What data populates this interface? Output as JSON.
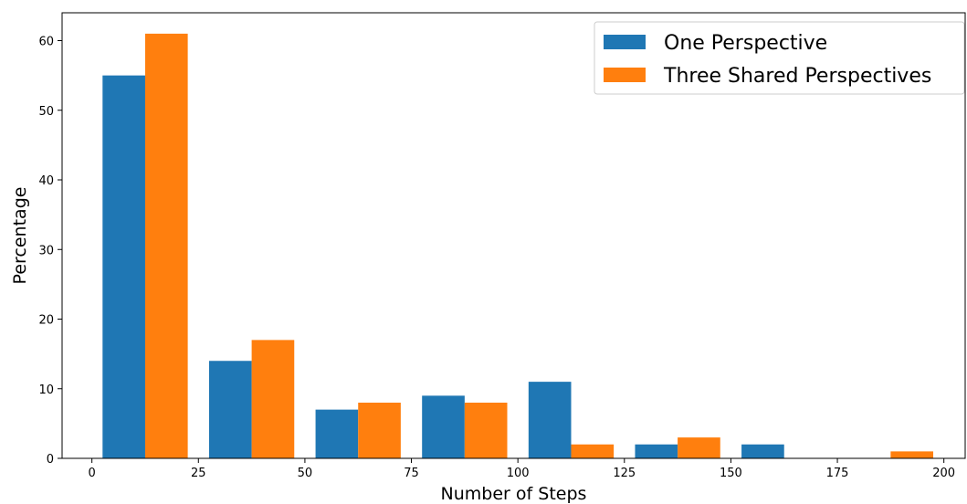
{
  "chart_data": {
    "type": "bar",
    "xlabel": "Number of Steps",
    "ylabel": "Percentage",
    "xlim": [
      -7,
      205
    ],
    "ylim": [
      0,
      64
    ],
    "bin_width": 10,
    "xticks": [
      0,
      25,
      50,
      75,
      100,
      125,
      150,
      175,
      200
    ],
    "yticks": [
      0,
      10,
      20,
      30,
      40,
      50,
      60
    ],
    "grid": false,
    "legend_position": "top-right",
    "series": [
      {
        "name": "One Perspective",
        "color": "#1f77b4",
        "points": [
          {
            "x": 7.5,
            "y": 55
          },
          {
            "x": 32.5,
            "y": 14
          },
          {
            "x": 57.5,
            "y": 7
          },
          {
            "x": 82.5,
            "y": 9
          },
          {
            "x": 107.5,
            "y": 11
          },
          {
            "x": 132.5,
            "y": 2
          },
          {
            "x": 157.5,
            "y": 2
          }
        ]
      },
      {
        "name": "Three Shared Perspectives",
        "color": "#ff7f0e",
        "points": [
          {
            "x": 17.5,
            "y": 61
          },
          {
            "x": 42.5,
            "y": 17
          },
          {
            "x": 67.5,
            "y": 8
          },
          {
            "x": 92.5,
            "y": 8
          },
          {
            "x": 117.5,
            "y": 2
          },
          {
            "x": 142.5,
            "y": 3
          },
          {
            "x": 192.5,
            "y": 1
          }
        ]
      }
    ]
  }
}
